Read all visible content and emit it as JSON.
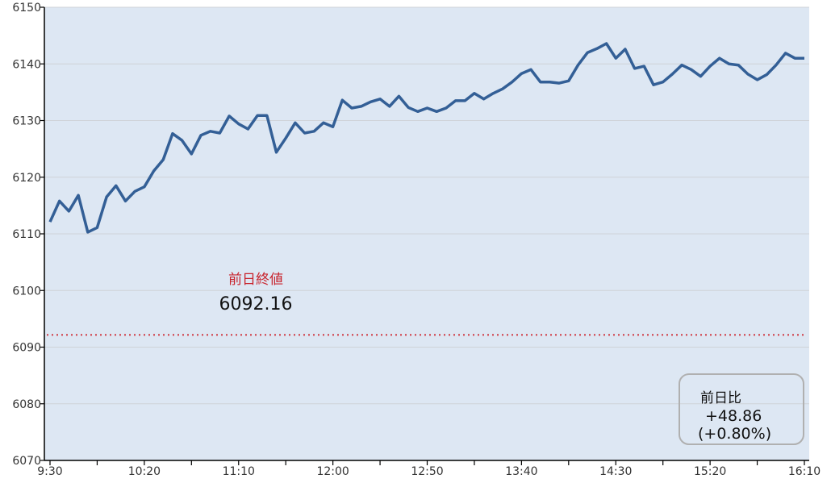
{
  "chart_data": {
    "type": "line",
    "title": "",
    "xlabel": "",
    "ylabel": "",
    "ylim": [
      6070,
      6150
    ],
    "yticks": [
      6070,
      6080,
      6090,
      6100,
      6110,
      6120,
      6130,
      6140,
      6150
    ],
    "xlim": [
      "9:30",
      "16:10"
    ],
    "xtick_labels": [
      "9:30",
      "10:20",
      "11:10",
      "12:00",
      "12:50",
      "13:40",
      "14:30",
      "15:20",
      "16:10"
    ],
    "grid": "horizontal",
    "interval_minutes": 5,
    "series": [
      {
        "color": "#335f96",
        "values": [
          6112.1,
          6115.8,
          6114.0,
          6116.8,
          6110.3,
          6111.1,
          6116.5,
          6118.5,
          6115.8,
          6117.5,
          6118.3,
          6121.1,
          6123.1,
          6127.7,
          6126.5,
          6124.1,
          6127.4,
          6128.1,
          6127.8,
          6130.8,
          6129.4,
          6128.5,
          6130.9,
          6130.9,
          6124.4,
          6126.9,
          6129.6,
          6127.8,
          6128.1,
          6129.6,
          6128.9,
          6133.6,
          6132.2,
          6132.5,
          6133.3,
          6133.8,
          6132.5,
          6134.3,
          6132.3,
          6131.6,
          6132.2,
          6131.6,
          6132.2,
          6133.5,
          6133.5,
          6134.8,
          6133.8,
          6134.8,
          6135.6,
          6136.8,
          6138.3,
          6139.0,
          6136.8,
          6136.8,
          6136.6,
          6137.0,
          6139.8,
          6142.0,
          6142.7,
          6143.6,
          6141.0,
          6142.6,
          6139.2,
          6139.6,
          6136.3,
          6136.8,
          6138.2,
          6139.8,
          6139.0,
          6137.8,
          6139.6,
          6141.0,
          6140.0,
          6139.8,
          6138.2,
          6137.2,
          6138.1,
          6139.8,
          6141.9,
          6141.0,
          6141.0
        ]
      }
    ],
    "reference_line": {
      "value": 6092.16,
      "color": "#d0404a",
      "style": "dotted",
      "label": "前日終値",
      "value_label": "6092.16"
    },
    "change_box": {
      "label": "前日比",
      "change": "+48.86",
      "percent": "(+0.80%)"
    },
    "colors": {
      "plot_background": "#dde7f3",
      "line": "#335f96",
      "label_red": "#c8232c"
    }
  }
}
